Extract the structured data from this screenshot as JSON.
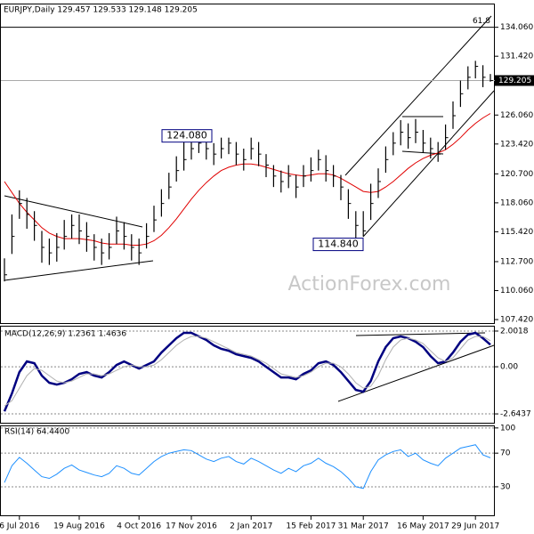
{
  "chart_data": [
    {
      "type": "ohlc",
      "title": "EURJPY,Daily 129.457 129.533 129.148 129.205",
      "watermark": "ActionForex.com",
      "ylim": [
        107.02,
        136.22
      ],
      "yticks": [
        {
          "value": 107.42,
          "label": "107.420"
        },
        {
          "value": 110.06,
          "label": "110.060"
        },
        {
          "value": 112.7,
          "label": "112.700"
        },
        {
          "value": 115.42,
          "label": "115.420"
        },
        {
          "value": 118.06,
          "label": "118.060"
        },
        {
          "value": 120.7,
          "label": "120.700"
        },
        {
          "value": 123.42,
          "label": "123.420"
        },
        {
          "value": 126.06,
          "label": "126.060"
        },
        {
          "value": 131.42,
          "label": "131.420"
        },
        {
          "value": 134.06,
          "label": "134.060"
        }
      ],
      "last_price": 129.205,
      "fib_level": {
        "value": 134.06,
        "label": "61.8"
      },
      "annotations": [
        {
          "value": 124.08,
          "label": "124.080"
        },
        {
          "value": 114.84,
          "label": "114.840"
        }
      ],
      "color": "#000000",
      "high": [
        113,
        117,
        119.2,
        118.5,
        117.3,
        115.5,
        114.8,
        115.3,
        116.5,
        117,
        117,
        116.3,
        115.2,
        114.8,
        115.3,
        116.8,
        116.3,
        115.2,
        114.8,
        116.2,
        117.8,
        119.3,
        120.8,
        122.3,
        123.6,
        124.08,
        124,
        124,
        123.5,
        124,
        124,
        123.6,
        123,
        124,
        123.6,
        122.5,
        121.5,
        121,
        121.5,
        120.6,
        121.5,
        122.2,
        122.9,
        122.4,
        121.5,
        120.6,
        119.3,
        117.3,
        117.3,
        119.8,
        121.2,
        123.2,
        124.5,
        125.6,
        125.3,
        125.7,
        124.7,
        124,
        123.6,
        125.2,
        127.3,
        129.2,
        130.5,
        131,
        130.6,
        129.8
      ],
      "low": [
        110.9,
        113.4,
        116.6,
        115.7,
        114.6,
        112.6,
        112.4,
        112.7,
        113.8,
        114.8,
        114.3,
        113.6,
        112.8,
        112.4,
        112.9,
        114.3,
        113.8,
        112.8,
        112.4,
        113.9,
        115.4,
        116.8,
        118.4,
        120,
        121,
        122,
        122.6,
        122,
        121.5,
        122.1,
        122.5,
        121.5,
        121,
        122,
        121.4,
        120.4,
        119.5,
        119,
        119.4,
        118.5,
        119.5,
        120,
        121,
        120,
        119.5,
        118.3,
        116.6,
        114.84,
        115,
        116.5,
        118.5,
        120.8,
        122.4,
        123.3,
        123,
        123.5,
        122.6,
        122.1,
        121.8,
        122.9,
        124.8,
        126.8,
        128.4,
        129.4,
        128.6,
        129.1
      ],
      "close": [
        111.5,
        115,
        118,
        117,
        116,
        114,
        113.5,
        114,
        115,
        116,
        115.5,
        115,
        114,
        113.5,
        114,
        115.5,
        115,
        114,
        113.5,
        115,
        116.5,
        118,
        119.5,
        121,
        122,
        123,
        123.5,
        123,
        122.5,
        123,
        123.5,
        122.5,
        122,
        123,
        122.5,
        121.5,
        120.5,
        120,
        120.5,
        119.5,
        120.5,
        121,
        122,
        121,
        120.5,
        119.5,
        118,
        116,
        115.5,
        118,
        120,
        122,
        123.5,
        124.5,
        124,
        124.5,
        123.5,
        123,
        122.5,
        124,
        126,
        128,
        129.5,
        130.5,
        129.5,
        129.2
      ],
      "series": [
        {
          "color": "#e00000",
          "values": [
            120,
            119,
            118,
            117.2,
            116.5,
            115.8,
            115.3,
            115,
            114.8,
            114.8,
            114.8,
            114.7,
            114.6,
            114.4,
            114.3,
            114.3,
            114.3,
            114.2,
            114.2,
            114.3,
            114.6,
            115.1,
            115.8,
            116.6,
            117.5,
            118.4,
            119.2,
            119.9,
            120.5,
            121,
            121.3,
            121.5,
            121.6,
            121.6,
            121.5,
            121.3,
            121.1,
            120.9,
            120.7,
            120.6,
            120.5,
            120.6,
            120.7,
            120.7,
            120.6,
            120.3,
            119.9,
            119.5,
            119.1,
            119,
            119.1,
            119.5,
            120,
            120.6,
            121.2,
            121.7,
            122.1,
            122.4,
            122.6,
            122.9,
            123.4,
            124,
            124.7,
            125.3,
            125.8,
            126.2
          ]
        }
      ]
    },
    {
      "type": "line",
      "title": "MACD(12,26,9) 1.2361 1.4636",
      "ylim": [
        -3.19,
        2.3
      ],
      "yticks": [
        2.0018,
        {
          "value": 0,
          "label": "0.00"
        },
        -2.6437
      ],
      "series": [
        {
          "color": "#000080",
          "values": [
            -2.5,
            -1.5,
            -0.3,
            0.3,
            0.2,
            -0.5,
            -0.9,
            -1,
            -0.9,
            -0.7,
            -0.4,
            -0.3,
            -0.5,
            -0.6,
            -0.3,
            0.1,
            0.3,
            0.1,
            -0.1,
            0.1,
            0.3,
            0.8,
            1.2,
            1.6,
            1.9,
            1.9,
            1.7,
            1.5,
            1.2,
            1,
            0.9,
            0.7,
            0.6,
            0.5,
            0.3,
            0,
            -0.3,
            -0.6,
            -0.6,
            -0.7,
            -0.4,
            -0.2,
            0.2,
            0.3,
            0.1,
            -0.3,
            -0.8,
            -1.3,
            -1.4,
            -0.8,
            0.3,
            1.1,
            1.6,
            1.7,
            1.6,
            1.4,
            1.1,
            0.6,
            0.2,
            0.3,
            0.8,
            1.4,
            1.8,
            1.9,
            1.6,
            1.2361
          ]
        },
        {
          "color": "#b0b0b0",
          "values": [
            -2.2,
            -1.9,
            -1.2,
            -0.5,
            -0.1,
            -0.2,
            -0.5,
            -0.8,
            -0.9,
            -0.8,
            -0.6,
            -0.4,
            -0.4,
            -0.5,
            -0.4,
            -0.2,
            0,
            0.1,
            0,
            0,
            0.1,
            0.4,
            0.8,
            1.2,
            1.5,
            1.7,
            1.7,
            1.6,
            1.4,
            1.2,
            1,
            0.8,
            0.7,
            0.6,
            0.4,
            0.2,
            -0.1,
            -0.4,
            -0.5,
            -0.6,
            -0.5,
            -0.3,
            0,
            0.2,
            0.2,
            0,
            -0.4,
            -0.9,
            -1.2,
            -1.1,
            -0.5,
            0.4,
            1.1,
            1.5,
            1.6,
            1.5,
            1.3,
            0.9,
            0.5,
            0.3,
            0.5,
            1,
            1.5,
            1.7,
            1.7,
            1.4636
          ]
        }
      ]
    },
    {
      "type": "line",
      "title": "RSI(14) 64.4400",
      "ylim": [
        -5,
        103
      ],
      "yticks": [
        100,
        70,
        30
      ],
      "categories": [
        null,
        null,
        "6 Jul 2016",
        null,
        null,
        null,
        null,
        null,
        null,
        null,
        "19 Aug 2016",
        null,
        null,
        null,
        null,
        null,
        null,
        null,
        "4 Oct 2016",
        null,
        null,
        null,
        null,
        null,
        null,
        "17 Nov 2016",
        null,
        null,
        null,
        null,
        null,
        null,
        null,
        "2 Jan 2017",
        null,
        null,
        null,
        null,
        null,
        null,
        null,
        "15 Feb 2017",
        null,
        null,
        null,
        null,
        null,
        null,
        "31 Mar 2017",
        null,
        null,
        null,
        null,
        null,
        null,
        null,
        "16 May 2017",
        null,
        null,
        null,
        null,
        null,
        null,
        "29 Jun 2017",
        null,
        null
      ],
      "series": [
        {
          "color": "#1e90ff",
          "values": [
            35,
            55,
            65,
            58,
            50,
            42,
            40,
            45,
            52,
            56,
            50,
            47,
            44,
            42,
            46,
            55,
            52,
            46,
            44,
            52,
            60,
            66,
            70,
            72,
            74,
            73,
            68,
            63,
            60,
            64,
            66,
            60,
            57,
            64,
            60,
            55,
            50,
            46,
            52,
            48,
            55,
            58,
            64,
            58,
            54,
            48,
            40,
            30,
            28,
            48,
            62,
            68,
            72,
            74,
            66,
            70,
            62,
            58,
            55,
            64,
            70,
            76,
            78,
            80,
            68,
            64.44
          ]
        }
      ]
    }
  ]
}
